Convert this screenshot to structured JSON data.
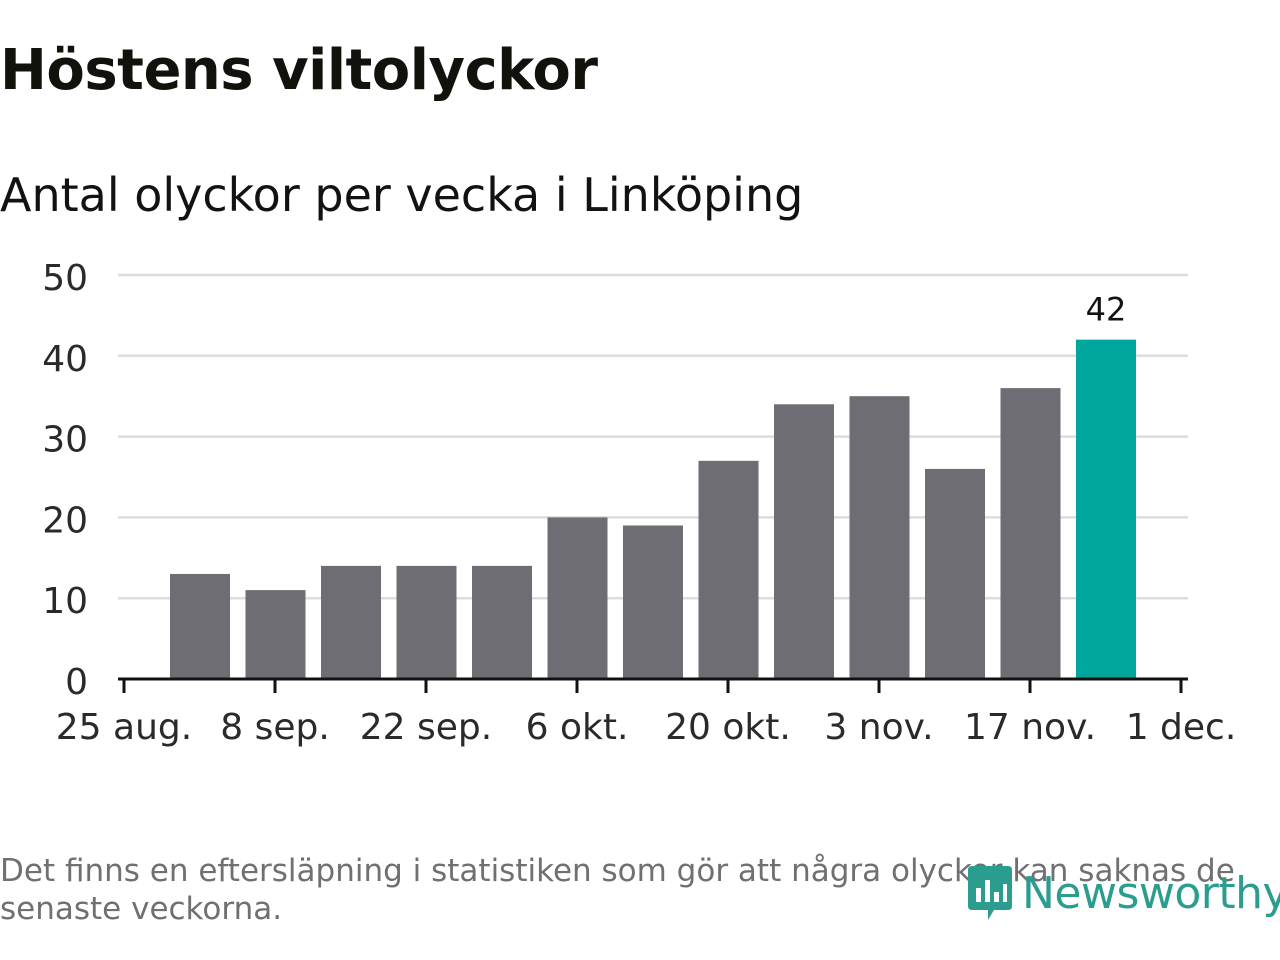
{
  "title": "Höstens viltolyckor",
  "subtitle": "Antal olyckor per vecka i Linköping",
  "footnote": "Det finns en eftersläpning i statistiken som gör att några olyckor kan saknas de senaste veckorna.",
  "brand": {
    "name": "Newsworthy",
    "icon": "newsworthy-logo-icon",
    "color": "#2a9d8f"
  },
  "chart_data": {
    "type": "bar",
    "title": "Höstens viltolyckor",
    "subtitle": "Antal olyckor per vecka i Linköping",
    "xlabel": "",
    "ylabel": "",
    "ylim": [
      0,
      50
    ],
    "yticks": [
      "0",
      "10",
      "20",
      "30",
      "40",
      "50"
    ],
    "xticks": [
      "25 aug.",
      "8 sep.",
      "22 sep.",
      "6 okt.",
      "20 okt.",
      "3 nov.",
      "17 nov.",
      "1 dec."
    ],
    "values": [
      13,
      11,
      14,
      14,
      14,
      20,
      19,
      27,
      34,
      35,
      26,
      36,
      42
    ],
    "highlight_index": 12,
    "highlight_label": "42",
    "colors": {
      "bar": "#6e6d73",
      "highlight": "#00a69c",
      "grid": "#dddddd",
      "axis": "#121212"
    },
    "grid": true
  }
}
